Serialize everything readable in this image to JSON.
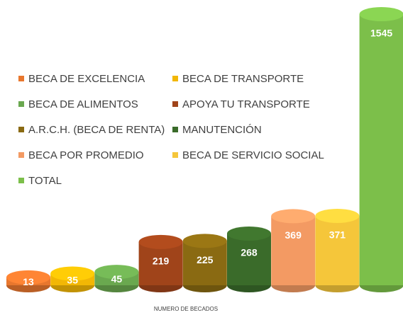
{
  "chart_data": {
    "type": "bar",
    "categories": [
      "BECA DE EXCELENCIA",
      "BECA DE TRANSPORTE",
      "BECA DE ALIMENTOS",
      "APOYA TU TRANSPORTE",
      "A.R.C.H. (BECA DE RENTA)",
      "MANUTENCIÓN",
      "BECA POR PROMEDIO",
      "BECA DE SERVICIO SOCIAL",
      "TOTAL"
    ],
    "values": [
      13,
      35,
      45,
      219,
      225,
      268,
      369,
      371,
      1545
    ],
    "colors": [
      "#e8772e",
      "#f2b705",
      "#6aa84f",
      "#a0441a",
      "#8a6a12",
      "#3a6b2a",
      "#f39a63",
      "#f5c63a",
      "#7cbf4a"
    ],
    "x_label": "NUMERO DE BECADOS",
    "legend": "upper left"
  }
}
